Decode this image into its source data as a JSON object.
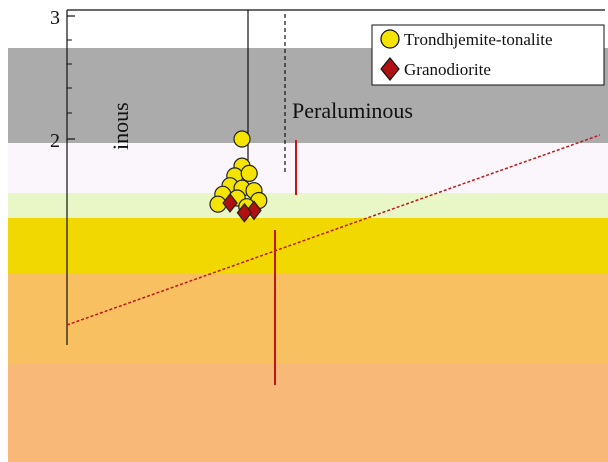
{
  "chart_data": {
    "type": "scatter",
    "region_labels": {
      "peraluminous": "Peraluminous",
      "metaluminous_partial": "inous"
    },
    "y_ticks_visible": [
      "3",
      "2"
    ],
    "legend": {
      "placement": "top-right",
      "entries": [
        {
          "name": "Trondhjemite-tonalite",
          "marker": "circle",
          "color": "#f5e400"
        },
        {
          "name": "Granodiorite",
          "marker": "diamond",
          "color": "#b01010"
        }
      ]
    },
    "series": [
      {
        "name": "Trondhjemite-tonalite",
        "points": [
          {
            "x": 1.05,
            "y": 2.0
          },
          {
            "x": 1.05,
            "y": 1.78
          },
          {
            "x": 1.02,
            "y": 1.7
          },
          {
            "x": 1.08,
            "y": 1.72
          },
          {
            "x": 1.0,
            "y": 1.62
          },
          {
            "x": 1.05,
            "y": 1.6
          },
          {
            "x": 1.1,
            "y": 1.58
          },
          {
            "x": 0.97,
            "y": 1.55
          },
          {
            "x": 1.03,
            "y": 1.52
          },
          {
            "x": 1.12,
            "y": 1.5
          },
          {
            "x": 0.95,
            "y": 1.47
          },
          {
            "x": 1.07,
            "y": 1.45
          }
        ]
      },
      {
        "name": "Granodiorite",
        "points": [
          {
            "x": 1.0,
            "y": 1.48
          },
          {
            "x": 1.1,
            "y": 1.42
          },
          {
            "x": 1.06,
            "y": 1.4
          }
        ]
      }
    ],
    "bands": [
      {
        "color": "#ababab"
      },
      {
        "color": "#fbf6fb"
      },
      {
        "color": "#e9f7c6"
      },
      {
        "color": "#f0d800"
      },
      {
        "color": "#f8c060"
      },
      {
        "color": "#f8b878"
      }
    ]
  }
}
